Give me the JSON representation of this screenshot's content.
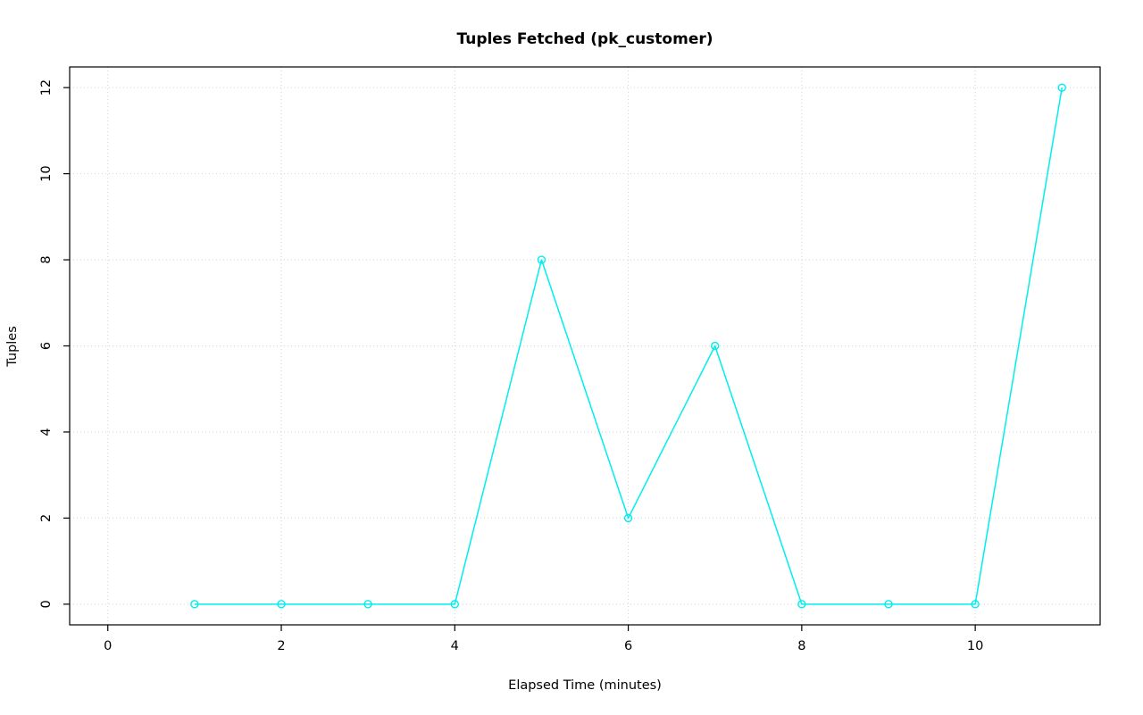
{
  "chart_data": {
    "type": "line",
    "title": "Tuples Fetched (pk_customer)",
    "xlabel": "Elapsed Time (minutes)",
    "ylabel": "Tuples",
    "x": [
      1,
      2,
      3,
      4,
      5,
      6,
      7,
      8,
      9,
      10,
      11
    ],
    "y": [
      0,
      0,
      0,
      0,
      8,
      2,
      6,
      0,
      0,
      0,
      12
    ],
    "x_ticks": [
      0,
      2,
      4,
      6,
      8,
      10
    ],
    "y_ticks": [
      0,
      2,
      4,
      6,
      8,
      10,
      12
    ],
    "xlim": [
      -0.44,
      11.44
    ],
    "ylim": [
      -0.48,
      12.48
    ],
    "grid": true,
    "legend": "none",
    "line_color": "#00eeee",
    "marker": "open-circle",
    "grid_color": "#d3d3d3",
    "box_color": "#000000",
    "background_color": "#ffffff"
  }
}
